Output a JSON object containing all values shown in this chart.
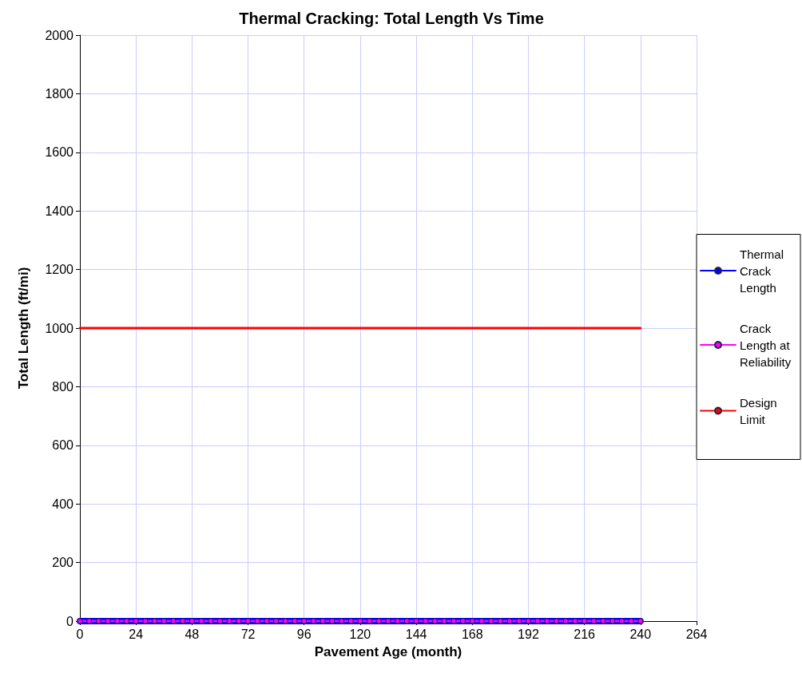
{
  "chart_data": {
    "type": "line",
    "title": "Thermal Cracking: Total Length Vs Time",
    "xlabel": "Pavement Age (month)",
    "ylabel": "Total Length (ft/mi)",
    "xlim": [
      0,
      264
    ],
    "xticks": [
      0,
      24,
      48,
      72,
      96,
      120,
      144,
      168,
      192,
      216,
      240,
      264
    ],
    "ylim": [
      0,
      2000
    ],
    "yticks": [
      0,
      200,
      400,
      600,
      800,
      1000,
      1200,
      1400,
      1600,
      1800,
      2000
    ],
    "grid": true,
    "legend": "right",
    "series": [
      {
        "name": "Thermal Crack Length",
        "color": "#0000ff",
        "marker": "circle",
        "x": [
          0,
          4,
          8,
          12,
          16,
          20,
          24,
          28,
          32,
          36,
          40,
          44,
          48,
          52,
          56,
          60,
          64,
          68,
          72,
          76,
          80,
          84,
          88,
          92,
          96,
          100,
          104,
          108,
          112,
          116,
          120,
          124,
          128,
          132,
          136,
          140,
          144,
          148,
          152,
          156,
          160,
          164,
          168,
          172,
          176,
          180,
          184,
          188,
          192,
          196,
          200,
          204,
          208,
          212,
          216,
          220,
          224,
          228,
          232,
          236,
          240
        ],
        "values": [
          0,
          0,
          0,
          0,
          0,
          0,
          0,
          0,
          0,
          0,
          0,
          0,
          0,
          0,
          0,
          0,
          0,
          0,
          0,
          0,
          0,
          0,
          0,
          0,
          0,
          0,
          0,
          0,
          0,
          0,
          0,
          0,
          0,
          0,
          0,
          0,
          0,
          0,
          0,
          0,
          0,
          0,
          0,
          0,
          0,
          0,
          0,
          0,
          0,
          0,
          0,
          0,
          0,
          0,
          0,
          0,
          0,
          0,
          0,
          0,
          0
        ]
      },
      {
        "name": "Crack Length at Reliability",
        "color": "#ff00ff",
        "marker": "circle",
        "x": [
          0,
          4,
          8,
          12,
          16,
          20,
          24,
          28,
          32,
          36,
          40,
          44,
          48,
          52,
          56,
          60,
          64,
          68,
          72,
          76,
          80,
          84,
          88,
          92,
          96,
          100,
          104,
          108,
          112,
          116,
          120,
          124,
          128,
          132,
          136,
          140,
          144,
          148,
          152,
          156,
          160,
          164,
          168,
          172,
          176,
          180,
          184,
          188,
          192,
          196,
          200,
          204,
          208,
          212,
          216,
          220,
          224,
          228,
          232,
          236,
          240
        ],
        "values": [
          0,
          0,
          0,
          0,
          0,
          0,
          0,
          0,
          0,
          0,
          0,
          0,
          0,
          0,
          0,
          0,
          0,
          0,
          0,
          0,
          0,
          0,
          0,
          0,
          0,
          0,
          0,
          0,
          0,
          0,
          0,
          0,
          0,
          0,
          0,
          0,
          0,
          0,
          0,
          0,
          0,
          0,
          0,
          0,
          0,
          0,
          0,
          0,
          0,
          0,
          0,
          0,
          0,
          0,
          0,
          0,
          0,
          0,
          0,
          0,
          0
        ]
      },
      {
        "name": "Design Limit",
        "color": "#ff0000",
        "marker": "none",
        "x": [
          0,
          240
        ],
        "values": [
          1000,
          1000
        ]
      }
    ]
  }
}
